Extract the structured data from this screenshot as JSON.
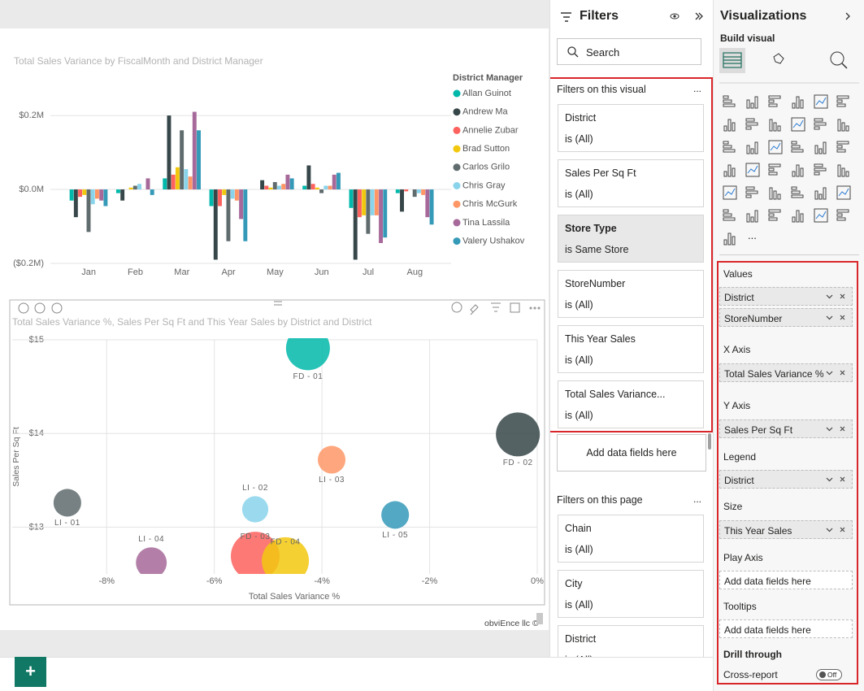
{
  "chart_data": [
    {
      "type": "bar",
      "title": "Total Sales Variance by FiscalMonth and District Manager",
      "legend_title": "District Manager",
      "legend_position": "right",
      "categories": [
        "Jan",
        "Feb",
        "Mar",
        "Apr",
        "May",
        "Jun",
        "Jul",
        "Aug"
      ],
      "series": [
        {
          "name": "Allan Guinot",
          "color": "#01B8AA",
          "values": [
            -0.03,
            -0.01,
            0.03,
            -0.045,
            0.0,
            0.01,
            -0.05,
            -0.01
          ]
        },
        {
          "name": "Andrew Ma",
          "color": "#374649",
          "values": [
            -0.075,
            -0.03,
            0.2,
            -0.19,
            0.025,
            0.065,
            -0.19,
            -0.06
          ]
        },
        {
          "name": "Annelie Zubar",
          "color": "#FD625E",
          "values": [
            -0.02,
            0.0,
            0.04,
            -0.045,
            0.01,
            0.015,
            -0.075,
            -0.005
          ]
        },
        {
          "name": "Brad Sutton",
          "color": "#F2C80F",
          "values": [
            -0.015,
            0.005,
            0.06,
            -0.015,
            0.005,
            0.005,
            -0.07,
            0.0
          ]
        },
        {
          "name": "Carlos Grilo",
          "color": "#5F6B6D",
          "values": [
            -0.115,
            0.01,
            0.16,
            -0.14,
            0.02,
            -0.01,
            -0.12,
            -0.02
          ]
        },
        {
          "name": "Chris Gray",
          "color": "#8AD4EB",
          "values": [
            -0.04,
            0.015,
            0.055,
            -0.025,
            0.01,
            0.01,
            -0.07,
            -0.01
          ]
        },
        {
          "name": "Chris McGurk",
          "color": "#FE9666",
          "values": [
            -0.025,
            0.0,
            0.035,
            -0.03,
            0.015,
            0.01,
            -0.07,
            -0.015
          ]
        },
        {
          "name": "Tina Lassila",
          "color": "#A66999",
          "values": [
            -0.03,
            0.03,
            0.21,
            -0.08,
            0.04,
            0.04,
            -0.145,
            -0.075
          ]
        },
        {
          "name": "Valery Ushakov",
          "color": "#3599B8",
          "values": [
            -0.045,
            -0.015,
            0.16,
            -0.14,
            0.03,
            0.045,
            -0.13,
            -0.095
          ]
        }
      ],
      "ylim": [
        -0.2,
        0.22
      ],
      "yticks": [
        {
          "value": 0.2,
          "label": "$0.2M"
        },
        {
          "value": 0,
          "label": "$0.0M"
        },
        {
          "value": -0.2,
          "label": "($0.2M)"
        }
      ],
      "grid": true
    },
    {
      "type": "scatter",
      "title": "Total Sales Variance %, Sales Per Sq Ft and This Year Sales by District and District",
      "x_label": "Total Sales Variance %",
      "y_label": "Sales Per Sq Ft",
      "xlim": [
        -9,
        0
      ],
      "xticks": [
        {
          "value": -8,
          "label": "-8%"
        },
        {
          "value": -6,
          "label": "-6%"
        },
        {
          "value": -4,
          "label": "-4%"
        },
        {
          "value": -2,
          "label": "-2%"
        },
        {
          "value": 0,
          "label": "0%"
        }
      ],
      "ylim": [
        12.5,
        15
      ],
      "yticks": [
        {
          "value": 13,
          "label": "$13"
        },
        {
          "value": 14,
          "label": "$14"
        },
        {
          "value": 15,
          "label": "$15"
        }
      ],
      "grid": true,
      "points": [
        {
          "label": "FD - 01",
          "x": -4.26,
          "y": 14.91,
          "size": 7.3,
          "color": "#01B8AA"
        },
        {
          "label": "FD - 02",
          "x": -0.36,
          "y": 13.99,
          "size": 7.3,
          "color": "#374649"
        },
        {
          "label": "LI - 03",
          "x": -3.82,
          "y": 13.72,
          "size": 2.9,
          "color": "#FE9666"
        },
        {
          "label": "LI - 01",
          "x": -8.73,
          "y": 13.26,
          "size": 2.9,
          "color": "#5F6B6D"
        },
        {
          "label": "LI - 02",
          "x": -5.24,
          "y": 13.19,
          "size": 2.6,
          "color": "#8AD4EB"
        },
        {
          "label": "FD - 03",
          "x": -5.24,
          "y": 12.69,
          "size": 9.0,
          "color": "#FD625E"
        },
        {
          "label": "FD - 04",
          "x": -4.68,
          "y": 12.64,
          "size": 8.4,
          "color": "#F2C80F"
        },
        {
          "label": "LI - 05",
          "x": -2.64,
          "y": 13.13,
          "size": 2.9,
          "color": "#3599B8"
        },
        {
          "label": "LI - 04",
          "x": -7.17,
          "y": 12.62,
          "size": 3.6,
          "color": "#A66999"
        }
      ],
      "attribution": "obviEnce llc ©"
    }
  ],
  "filters_pane": {
    "title": "Filters",
    "search": "Search",
    "visual_filters": {
      "title": "Filters on this visual",
      "more": "...",
      "cards": [
        {
          "field": "District",
          "state": "is (All)",
          "applied": false
        },
        {
          "field": "Sales Per Sq Ft",
          "state": "is (All)",
          "applied": false
        },
        {
          "field": "Store Type",
          "state": "is Same Store",
          "applied": true
        },
        {
          "field": "StoreNumber",
          "state": "is (All)",
          "applied": false
        },
        {
          "field": "This Year Sales",
          "state": "is (All)",
          "applied": false
        },
        {
          "field": "Total Sales Variance...",
          "state": "is (All)",
          "applied": false
        }
      ],
      "add_fields": "Add data fields here"
    },
    "page_filters": {
      "title": "Filters on this page",
      "more": "...",
      "cards": [
        {
          "field": "Chain",
          "state": "is (All)",
          "applied": false
        },
        {
          "field": "City",
          "state": "is (All)",
          "applied": false
        },
        {
          "field": "District",
          "state": "is (All)",
          "applied": false
        }
      ]
    }
  },
  "visualizations_pane": {
    "title": "Visualizations",
    "build_visual": "Build visual",
    "more_visuals": "...",
    "wells": [
      {
        "name": "Values",
        "fields": [
          "District",
          "StoreNumber"
        ]
      },
      {
        "name": "X Axis",
        "fields": [
          "Total Sales Variance %"
        ]
      },
      {
        "name": "Y Axis",
        "fields": [
          "Sales Per Sq Ft"
        ]
      },
      {
        "name": "Legend",
        "fields": [
          "District"
        ]
      },
      {
        "name": "Size",
        "fields": [
          "This Year Sales"
        ]
      },
      {
        "name": "Play Axis",
        "placeholder": "Add data fields here"
      },
      {
        "name": "Tooltips",
        "placeholder": "Add data fields here"
      }
    ],
    "drill_through": {
      "title": "Drill through",
      "cross_report": "Cross-report",
      "toggle": "Off"
    }
  },
  "page_tabs": {
    "add_page": "+"
  }
}
